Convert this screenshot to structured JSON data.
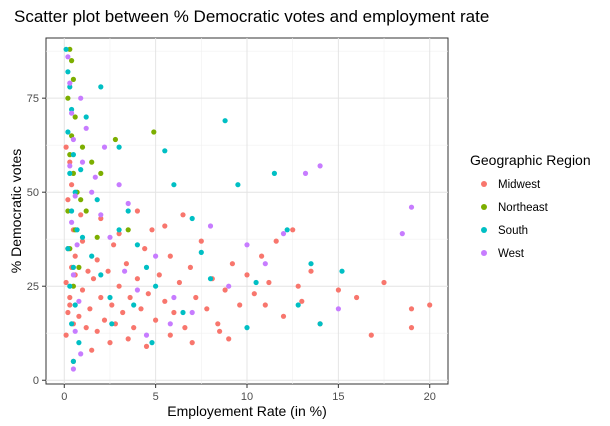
{
  "chart_data": {
    "type": "scatter",
    "title": "Scatter plot between % Democratic votes and employment rate",
    "xlabel": "Employement Rate (in %)",
    "ylabel": "% Democratic votes",
    "xlim": [
      -1,
      21
    ],
    "ylim": [
      -1,
      91
    ],
    "x_ticks": [
      0,
      5,
      10,
      15,
      20
    ],
    "x_tick_labels": [
      "0",
      "5",
      "10",
      "15",
      "20"
    ],
    "y_ticks": [
      0,
      25,
      50,
      75
    ],
    "y_tick_labels": [
      "0",
      "25",
      "50",
      "75"
    ],
    "grid": true,
    "legend": {
      "title": "Geographic Region",
      "placement": "right",
      "entries": [
        "Midwest",
        "Northeast",
        "South",
        "West"
      ]
    },
    "series": [
      {
        "name": "Midwest",
        "color": "#F8766D",
        "points": [
          [
            0.1,
            12
          ],
          [
            0.2,
            18
          ],
          [
            0.3,
            22
          ],
          [
            0.1,
            26
          ],
          [
            0.4,
            30
          ],
          [
            0.2,
            35
          ],
          [
            0.5,
            15
          ],
          [
            0.3,
            20
          ],
          [
            0.6,
            28
          ],
          [
            0.8,
            17
          ],
          [
            1.0,
            24
          ],
          [
            1.2,
            14
          ],
          [
            1.4,
            19
          ],
          [
            1.6,
            27
          ],
          [
            1.8,
            13
          ],
          [
            2.0,
            22
          ],
          [
            2.2,
            16
          ],
          [
            2.4,
            29
          ],
          [
            2.6,
            20
          ],
          [
            2.8,
            15
          ],
          [
            3.0,
            25
          ],
          [
            3.2,
            18
          ],
          [
            3.4,
            31
          ],
          [
            3.6,
            22
          ],
          [
            3.8,
            14
          ],
          [
            4.0,
            27
          ],
          [
            4.2,
            19
          ],
          [
            4.4,
            35
          ],
          [
            4.6,
            23
          ],
          [
            4.8,
            40
          ],
          [
            5.0,
            16
          ],
          [
            5.2,
            28
          ],
          [
            5.5,
            21
          ],
          [
            5.8,
            33
          ],
          [
            6.0,
            18
          ],
          [
            6.3,
            26
          ],
          [
            6.6,
            14
          ],
          [
            6.9,
            30
          ],
          [
            7.2,
            22
          ],
          [
            7.5,
            37
          ],
          [
            7.8,
            19
          ],
          [
            8.1,
            27
          ],
          [
            8.4,
            15
          ],
          [
            8.8,
            24
          ],
          [
            9.2,
            31
          ],
          [
            9.6,
            20
          ],
          [
            10.0,
            28
          ],
          [
            10.4,
            23
          ],
          [
            10.8,
            33
          ],
          [
            11.2,
            26
          ],
          [
            11.6,
            37
          ],
          [
            12.0,
            17
          ],
          [
            12.5,
            40
          ],
          [
            13.0,
            21
          ],
          [
            13.5,
            29
          ],
          [
            14.0,
            15
          ],
          [
            15.0,
            24
          ],
          [
            16.0,
            22
          ],
          [
            16.8,
            12
          ],
          [
            17.5,
            26
          ],
          [
            19.0,
            19
          ],
          [
            19.0,
            14
          ],
          [
            20.0,
            20
          ],
          [
            2.0,
            43
          ],
          [
            3.0,
            39
          ],
          [
            4.0,
            45
          ],
          [
            5.5,
            41
          ],
          [
            1.0,
            37
          ],
          [
            6.5,
            44
          ],
          [
            2.5,
            10
          ],
          [
            1.5,
            8
          ],
          [
            0.5,
            5
          ],
          [
            3.5,
            11
          ],
          [
            4.5,
            9
          ],
          [
            1.8,
            32
          ],
          [
            2.7,
            36
          ],
          [
            5.8,
            12
          ],
          [
            7.0,
            10
          ],
          [
            8.5,
            13
          ],
          [
            9.0,
            11
          ],
          [
            0.2,
            48
          ],
          [
            0.4,
            52
          ],
          [
            0.3,
            58
          ],
          [
            0.1,
            62
          ],
          [
            0.5,
            40
          ],
          [
            1.3,
            29
          ],
          [
            0.9,
            44
          ],
          [
            0.6,
            33
          ],
          [
            11.0,
            20
          ],
          [
            12.8,
            25
          ]
        ]
      },
      {
        "name": "Northeast",
        "color": "#7CAE00",
        "points": [
          [
            0.3,
            88
          ],
          [
            0.4,
            85
          ],
          [
            0.5,
            80
          ],
          [
            0.2,
            75
          ],
          [
            0.6,
            70
          ],
          [
            0.4,
            65
          ],
          [
            0.3,
            60
          ],
          [
            0.5,
            55
          ],
          [
            0.7,
            50
          ],
          [
            0.2,
            45
          ],
          [
            0.6,
            40
          ],
          [
            0.3,
            35
          ],
          [
            0.8,
            30
          ],
          [
            0.5,
            25
          ],
          [
            1.0,
            62
          ],
          [
            1.5,
            58
          ],
          [
            2.0,
            55
          ],
          [
            2.8,
            64
          ],
          [
            3.5,
            40
          ],
          [
            4.9,
            66
          ],
          [
            0.9,
            48
          ],
          [
            1.2,
            45
          ],
          [
            1.8,
            38
          ]
        ]
      },
      {
        "name": "South",
        "color": "#00BFC4",
        "points": [
          [
            0.1,
            88
          ],
          [
            0.2,
            82
          ],
          [
            0.3,
            78
          ],
          [
            0.4,
            72
          ],
          [
            0.2,
            66
          ],
          [
            0.5,
            60
          ],
          [
            0.3,
            55
          ],
          [
            0.6,
            50
          ],
          [
            0.4,
            45
          ],
          [
            0.7,
            40
          ],
          [
            0.2,
            35
          ],
          [
            0.5,
            30
          ],
          [
            0.3,
            25
          ],
          [
            0.6,
            20
          ],
          [
            0.4,
            15
          ],
          [
            0.8,
            10
          ],
          [
            0.5,
            5
          ],
          [
            1.0,
            38
          ],
          [
            1.5,
            33
          ],
          [
            2.0,
            28
          ],
          [
            2.5,
            22
          ],
          [
            3.0,
            40
          ],
          [
            3.5,
            45
          ],
          [
            4.0,
            36
          ],
          [
            4.5,
            30
          ],
          [
            5.0,
            25
          ],
          [
            5.5,
            61
          ],
          [
            6.0,
            52
          ],
          [
            6.5,
            18
          ],
          [
            7.0,
            43
          ],
          [
            7.5,
            34
          ],
          [
            8.0,
            27
          ],
          [
            8.8,
            69
          ],
          [
            9.5,
            52
          ],
          [
            10.0,
            14
          ],
          [
            10.5,
            26
          ],
          [
            11.5,
            55
          ],
          [
            12.2,
            40
          ],
          [
            12.8,
            20
          ],
          [
            13.5,
            31
          ],
          [
            14.0,
            15
          ],
          [
            15.2,
            29
          ],
          [
            2.0,
            78
          ],
          [
            3.0,
            62
          ],
          [
            1.2,
            70
          ],
          [
            0.9,
            56
          ],
          [
            1.8,
            48
          ],
          [
            2.6,
            15
          ],
          [
            3.8,
            20
          ],
          [
            4.8,
            10
          ]
        ]
      },
      {
        "name": "West",
        "color": "#C77CFF",
        "points": [
          [
            0.2,
            86
          ],
          [
            0.3,
            79
          ],
          [
            0.4,
            71
          ],
          [
            0.5,
            64
          ],
          [
            0.3,
            57
          ],
          [
            0.6,
            49
          ],
          [
            0.4,
            42
          ],
          [
            0.7,
            36
          ],
          [
            0.5,
            28
          ],
          [
            0.8,
            21
          ],
          [
            0.6,
            13
          ],
          [
            0.9,
            7
          ],
          [
            0.5,
            3
          ],
          [
            1.0,
            58
          ],
          [
            1.5,
            50
          ],
          [
            2.0,
            44
          ],
          [
            2.5,
            38
          ],
          [
            3.0,
            52
          ],
          [
            3.5,
            47
          ],
          [
            4.0,
            24
          ],
          [
            4.5,
            12
          ],
          [
            5.0,
            33
          ],
          [
            6.0,
            22
          ],
          [
            7.0,
            18
          ],
          [
            8.0,
            41
          ],
          [
            9.0,
            25
          ],
          [
            10.0,
            36
          ],
          [
            11.0,
            31
          ],
          [
            12.0,
            39
          ],
          [
            13.2,
            55
          ],
          [
            14.0,
            57
          ],
          [
            15.0,
            19
          ],
          [
            18.5,
            39
          ],
          [
            19.0,
            46
          ],
          [
            1.2,
            67
          ],
          [
            2.2,
            62
          ],
          [
            3.3,
            29
          ],
          [
            0.9,
            75
          ],
          [
            1.7,
            54
          ],
          [
            5.8,
            15
          ]
        ]
      }
    ]
  }
}
